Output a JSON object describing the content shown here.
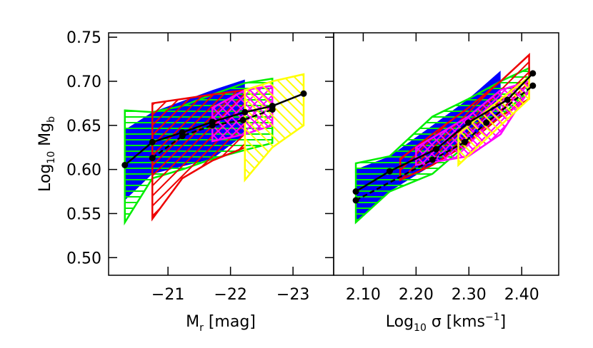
{
  "chart_data": [
    {
      "type": "line",
      "x_label": [
        "M",
        "r",
        " [mag]"
      ],
      "y_label": [
        "Log",
        "10",
        " Mg",
        "b"
      ],
      "xlim": [
        -20.05,
        -23.65
      ],
      "ylim": [
        0.48,
        0.755
      ],
      "xticks": [
        {
          "value": -21,
          "label": "−21"
        },
        {
          "value": -22,
          "label": "−22"
        },
        {
          "value": -23,
          "label": "−23"
        }
      ],
      "yticks": [
        {
          "value": 0.5,
          "label": "0.50"
        },
        0.55,
        {
          "value": 0.6,
          "label": "0.60"
        },
        0.65,
        {
          "value": 0.7,
          "label": "0.70"
        },
        0.75
      ],
      "bands": [
        {
          "color": "#0000ff",
          "pattern": "solid",
          "x": [
            -20.31,
            -20.75,
            -21.71,
            -22.23
          ],
          "upper": [
            0.645,
            0.665,
            0.69,
            0.702
          ],
          "lower": [
            0.565,
            0.595,
            0.612,
            0.64
          ]
        },
        {
          "color": "#00ee00",
          "pattern": "horizontal",
          "x": [
            -20.31,
            -20.75,
            -21.23,
            -21.71,
            -22.23,
            -22.67
          ],
          "upper": [
            0.667,
            0.665,
            0.672,
            0.685,
            0.698,
            0.703
          ],
          "lower": [
            0.54,
            0.59,
            0.6,
            0.612,
            0.622,
            0.63
          ]
        },
        {
          "color": "#ee0000",
          "pattern": "diagonal",
          "x": [
            -20.75,
            -21.23,
            -21.71,
            -22.23
          ],
          "upper": [
            0.675,
            0.68,
            0.685,
            0.69
          ],
          "lower": [
            0.544,
            0.59,
            0.61,
            0.625
          ]
        },
        {
          "color": "#ff00ff",
          "pattern": "cross",
          "x": [
            -21.71,
            -22.23,
            -22.67
          ],
          "upper": [
            0.67,
            0.69,
            0.695
          ],
          "lower": [
            0.632,
            0.64,
            0.65
          ]
        },
        {
          "color": "#ffff00",
          "pattern": "antidiagonal",
          "x": [
            -22.23,
            -22.67,
            -23.17
          ],
          "upper": [
            0.69,
            0.7,
            0.708
          ],
          "lower": [
            0.588,
            0.625,
            0.65
          ]
        }
      ],
      "series": [
        {
          "color": "#000000",
          "dashed": false,
          "x": [
            -20.31,
            -20.75,
            -21.23,
            -21.71,
            -22.23,
            -22.67,
            -23.17
          ],
          "values": [
            0.605,
            0.631,
            0.642,
            0.654,
            0.665,
            0.672,
            0.686
          ]
        },
        {
          "color": "#000000",
          "dashed": true,
          "x": [
            -20.75,
            -21.23,
            -21.71,
            -22.2,
            -22.67
          ],
          "values": [
            0.613,
            0.638,
            0.65,
            0.656,
            0.668
          ]
        }
      ]
    },
    {
      "type": "line",
      "x_label": [
        "Log",
        "10",
        " σ [kms",
        "−1",
        "]"
      ],
      "xlim": [
        2.044,
        2.47
      ],
      "ylim": [
        0.48,
        0.755
      ],
      "xticks": [
        {
          "value": 2.1,
          "label": "2.10"
        },
        {
          "value": 2.2,
          "label": "2.20"
        },
        {
          "value": 2.3,
          "label": "2.30"
        },
        {
          "value": 2.4,
          "label": "2.40"
        }
      ],
      "bands": [
        {
          "color": "#0000ff",
          "pattern": "solid",
          "x": [
            2.086,
            2.15,
            2.231,
            2.299,
            2.36
          ],
          "upper": [
            0.6,
            0.615,
            0.65,
            0.68,
            0.712
          ],
          "lower": [
            0.54,
            0.575,
            0.605,
            0.63,
            0.66
          ]
        },
        {
          "color": "#00ee00",
          "pattern": "horizontal",
          "x": [
            2.086,
            2.15,
            2.231,
            2.299,
            2.36,
            2.414
          ],
          "upper": [
            0.607,
            0.615,
            0.66,
            0.68,
            0.7,
            0.715
          ],
          "lower": [
            0.54,
            0.575,
            0.595,
            0.63,
            0.66,
            0.69
          ]
        },
        {
          "color": "#ee0000",
          "pattern": "diagonal",
          "x": [
            2.17,
            2.231,
            2.299,
            2.36,
            2.414
          ],
          "upper": [
            0.612,
            0.64,
            0.67,
            0.7,
            0.73
          ],
          "lower": [
            0.588,
            0.605,
            0.63,
            0.66,
            0.68
          ]
        },
        {
          "color": "#ff00ff",
          "pattern": "cross",
          "x": [
            2.2,
            2.299,
            2.36,
            2.414
          ],
          "upper": [
            0.625,
            0.66,
            0.69,
            0.7
          ],
          "lower": [
            0.605,
            0.615,
            0.64,
            0.69
          ]
        },
        {
          "color": "#ffff00",
          "pattern": "antidiagonal",
          "x": [
            2.28,
            2.36,
            2.414
          ],
          "upper": [
            0.64,
            0.68,
            0.705
          ],
          "lower": [
            0.605,
            0.65,
            0.68
          ]
        }
      ],
      "series": [
        {
          "color": "#000000",
          "dashed": false,
          "x": [
            2.086,
            2.15,
            2.238,
            2.299,
            2.373,
            2.421
          ],
          "values": [
            0.575,
            0.598,
            0.623,
            0.653,
            0.679,
            0.709
          ]
        },
        {
          "color": "#000000",
          "dashed": true,
          "x": [
            2.086,
            2.231,
            2.292,
            2.333,
            2.421
          ],
          "values": [
            0.565,
            0.611,
            0.631,
            0.653,
            0.695
          ]
        }
      ]
    }
  ]
}
